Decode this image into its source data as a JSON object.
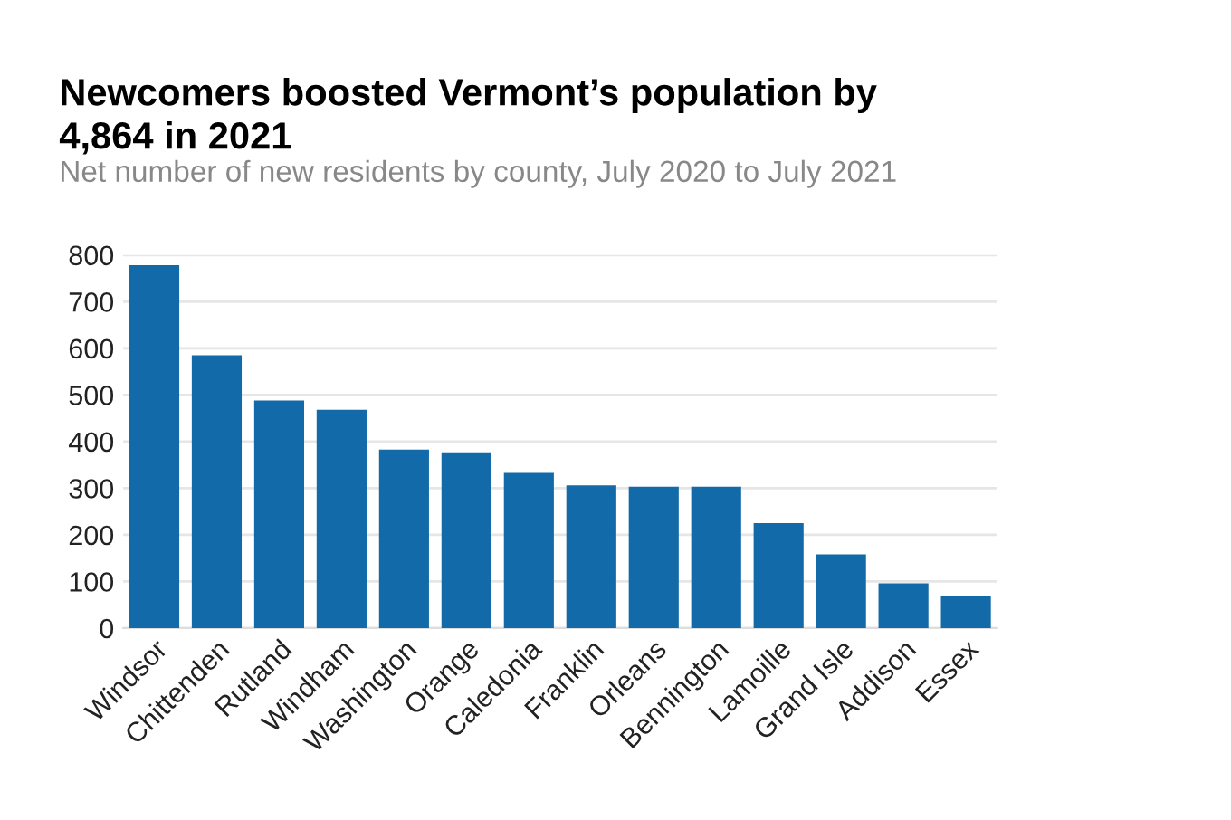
{
  "chart_data": {
    "type": "bar",
    "title": "Newcomers boosted Vermont’s population by\n4,864 in 2021",
    "subtitle": "Net number of new residents by county, July 2020 to July 2021",
    "categories": [
      "Windsor",
      "Chittenden",
      "Rutland",
      "Windham",
      "Washington",
      "Orange",
      "Caledonia",
      "Franklin",
      "Orleans",
      "Bennington",
      "Lamoille",
      "Grand Isle",
      "Addison",
      "Essex"
    ],
    "values": [
      778,
      585,
      488,
      468,
      383,
      377,
      333,
      306,
      303,
      303,
      225,
      158,
      96,
      70
    ],
    "color": "#136aa8",
    "ylim": [
      0,
      800
    ],
    "yticks": [
      0,
      100,
      200,
      300,
      400,
      500,
      600,
      700,
      800
    ],
    "grid": "y"
  }
}
